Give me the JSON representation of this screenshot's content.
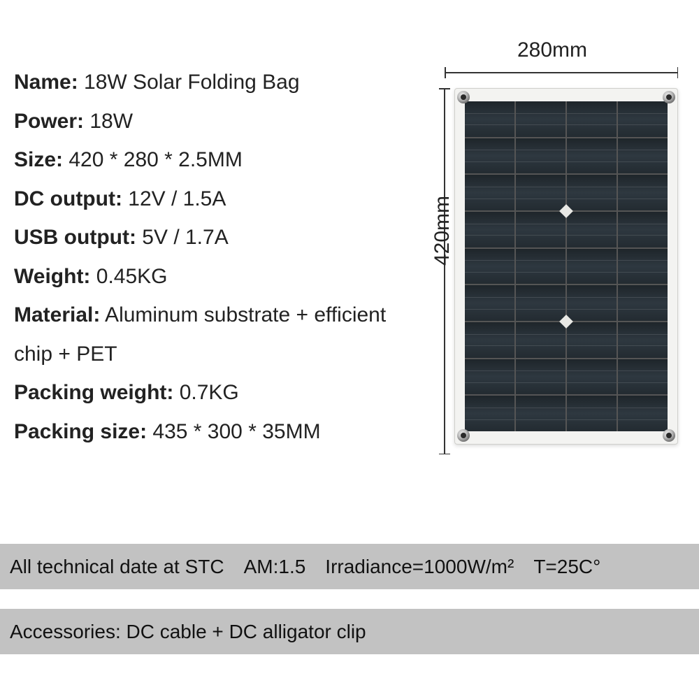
{
  "specs": [
    {
      "label": "Name:",
      "value": " 18W Solar Folding Bag"
    },
    {
      "label": "Power:",
      "value": " 18W"
    },
    {
      "label": "Size:",
      "value": " 420 * 280 * 2.5MM"
    },
    {
      "label": "DC output:",
      "value": " 12V / 1.5A"
    },
    {
      "label": "USB output:",
      "value": " 5V / 1.7A"
    },
    {
      "label": "Weight:",
      "value": " 0.45KG"
    },
    {
      "label": "Material:",
      "value": " Aluminum substrate + efficient chip + PET"
    },
    {
      "label": "Packing weight:",
      "value": " 0.7KG"
    },
    {
      "label": "Packing size:",
      "value": " 435 * 300 * 35MM"
    }
  ],
  "diagram": {
    "width_label": "280mm",
    "height_label": "420mm",
    "grid_cols": 4,
    "grid_rows": 9,
    "cell_color": "#2e3840",
    "frame_color": "#f3f3f1"
  },
  "footer": {
    "stc_text": "All technical date at  STC",
    "am": "AM:1.5",
    "irradiance": "Irradiance=1000W/m²",
    "temp": "T=25C°",
    "accessories": "Accessories: DC cable + DC alligator clip"
  },
  "colors": {
    "bar_bg": "#c2c2c2",
    "text": "#000000",
    "bg": "#ffffff"
  }
}
